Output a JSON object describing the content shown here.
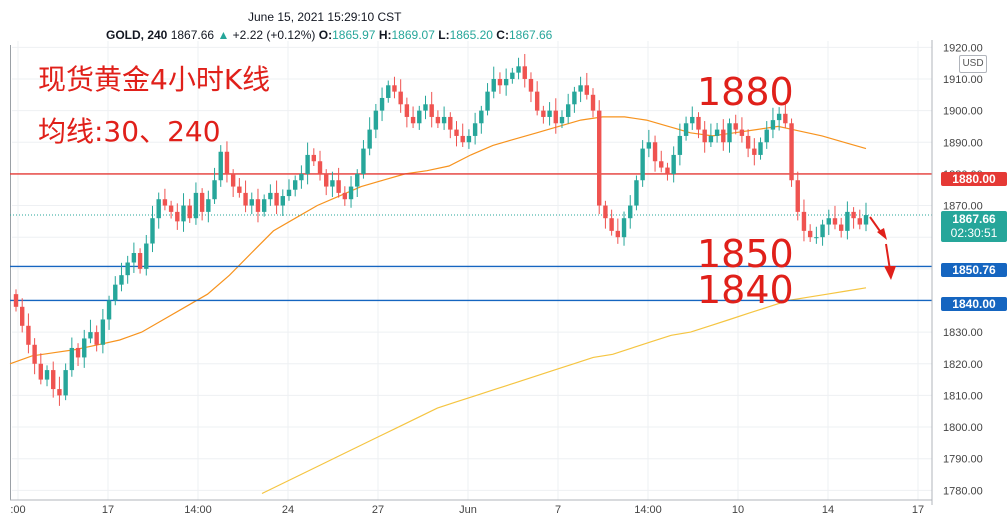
{
  "header": {
    "datetime": "June 15, 2021 15:29:10 CST",
    "symbol": "GOLD, 240",
    "last": "1867.66",
    "change": "+2.22 (+0.12%)",
    "o_label": "O:",
    "o_value": "1865.97",
    "h_label": "H:",
    "h_value": "1869.07",
    "l_label": "L:",
    "l_value": "1865.20",
    "c_label": "C:",
    "c_value": "1867.66"
  },
  "annotations": {
    "title_line1": "现货黄金4小时K线",
    "title_line2": "均线:30、240",
    "level_1880": "1880",
    "level_1850": "1850",
    "level_1840": "1840"
  },
  "price_boxes": {
    "p1880": "1880.00",
    "current": "1867.66",
    "countdown": "02:30:51",
    "p1850": "1850.76",
    "p1840": "1840.00"
  },
  "currency": "USD",
  "colors": {
    "up": "#26a69a",
    "down": "#ef5350",
    "ma30": "#f7931e",
    "ma240": "#f5c542",
    "red_line": "#e53935",
    "blue_line": "#1565c0",
    "annotation": "#e0201a"
  },
  "chart_data": {
    "type": "candlestick",
    "y_ticks": [
      1780,
      1790,
      1800,
      1810,
      1820,
      1830,
      1840,
      1850,
      1860,
      1870,
      1880,
      1890,
      1900,
      1910,
      1920
    ],
    "y_tick_labels": [
      "1780.00",
      "1790.00",
      "1800.00",
      "1810.00",
      "1820.00",
      "1830.00",
      "1840.00",
      "1850.00",
      "1860.00",
      "1870.00",
      "1880.00",
      "1890.00",
      "1900.00",
      "1910.00",
      "1920.00"
    ],
    "ylim": [
      1776,
      1922
    ],
    "x_ticks": [
      ":00",
      "17",
      "14:00",
      "24",
      "27",
      "Jun",
      "7",
      "14:00",
      "10",
      "14",
      "17"
    ],
    "horizontal_levels": [
      {
        "value": 1880.0,
        "color": "red"
      },
      {
        "value": 1850.76,
        "color": "blue"
      },
      {
        "value": 1840.0,
        "color": "blue"
      }
    ],
    "candles_close": [
      1838,
      1832,
      1826,
      1820,
      1815,
      1818,
      1812,
      1810,
      1818,
      1825,
      1822,
      1828,
      1830,
      1826,
      1834,
      1840,
      1845,
      1848,
      1852,
      1855,
      1850,
      1858,
      1866,
      1872,
      1870,
      1868,
      1865,
      1870,
      1866,
      1874,
      1868,
      1872,
      1878,
      1887,
      1880,
      1876,
      1874,
      1870,
      1872,
      1868,
      1872,
      1874,
      1870,
      1873,
      1875,
      1878,
      1880,
      1886,
      1884,
      1880,
      1876,
      1878,
      1874,
      1872,
      1876,
      1880,
      1888,
      1894,
      1900,
      1904,
      1908,
      1906,
      1902,
      1898,
      1896,
      1900,
      1902,
      1898,
      1896,
      1898,
      1894,
      1892,
      1890,
      1892,
      1896,
      1900,
      1906,
      1910,
      1908,
      1910,
      1912,
      1914,
      1910,
      1906,
      1900,
      1898,
      1900,
      1896,
      1898,
      1902,
      1906,
      1908,
      1905,
      1900,
      1870,
      1866,
      1862,
      1860,
      1866,
      1870,
      1878,
      1888,
      1890,
      1884,
      1882,
      1880,
      1886,
      1892,
      1896,
      1898,
      1894,
      1890,
      1892,
      1894,
      1890,
      1896,
      1894,
      1892,
      1888,
      1886,
      1890,
      1894,
      1897,
      1899,
      1896,
      1878,
      1868,
      1862,
      1860,
      1860,
      1864,
      1866,
      1864,
      1862,
      1868,
      1866,
      1864,
      1867
    ],
    "ma30": [
      1820,
      1822.5,
      1823.5,
      1824.5,
      1826,
      1827.5,
      1830,
      1834,
      1838,
      1842,
      1848,
      1855,
      1862,
      1866,
      1870,
      1873,
      1876,
      1878,
      1880,
      1881,
      1882.5,
      1886,
      1889,
      1891,
      1893,
      1895,
      1897,
      1898,
      1898,
      1897,
      1895,
      1893,
      1892,
      1893,
      1894,
      1895,
      1893.5,
      1892,
      1890,
      1888
    ],
    "ma240": [
      1779,
      1782,
      1785,
      1788,
      1791,
      1794,
      1797,
      1800,
      1803,
      1806,
      1808,
      1810,
      1812,
      1814,
      1816,
      1818,
      1820,
      1822,
      1823,
      1825,
      1827,
      1829,
      1830,
      1832,
      1834,
      1836,
      1838,
      1840,
      1841,
      1842,
      1843,
      1844
    ]
  }
}
